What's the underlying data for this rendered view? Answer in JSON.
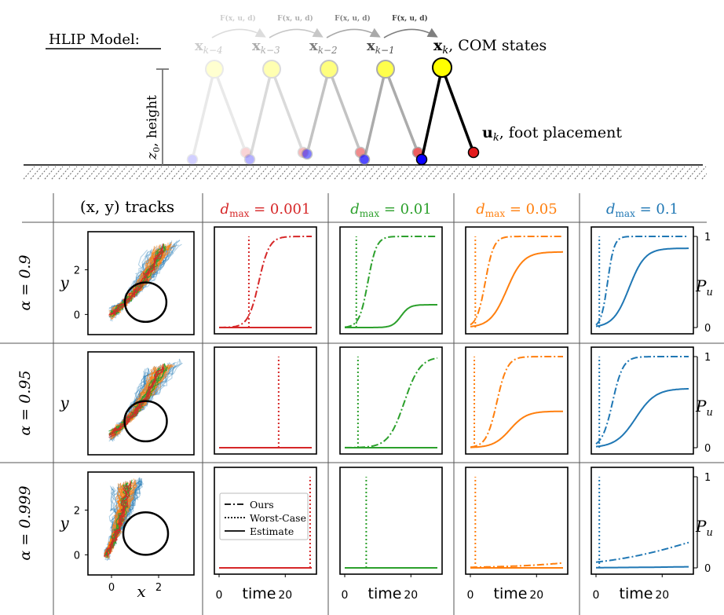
{
  "hlip": {
    "title": "HLIP Model:",
    "com_states_label": "x",
    "com_states_sub": "k",
    "com_states_text": ", COM states",
    "foot_label": "u",
    "foot_sub": "k",
    "foot_text": ", foot placement",
    "height_label": "z",
    "height_sub": "0",
    "height_text": ", height",
    "transition_label": "F(x, u, d)",
    "past_state_labels": [
      "x",
      "x",
      "x",
      "x"
    ],
    "past_state_subs": [
      "k−4",
      "k−3",
      "k−2",
      "k−1"
    ],
    "com_color": "#ffff00",
    "foot_color": "#e31a1c",
    "stance_color": "#0a00ff"
  },
  "grid": {
    "tracks_header": "(x, y) tracks",
    "col_headers": [
      {
        "label": "d",
        "sub": "max",
        "value": " = 0.001",
        "color": "#d62728"
      },
      {
        "label": "d",
        "sub": "max",
        "value": " = 0.01",
        "color": "#2ca02c"
      },
      {
        "label": "d",
        "sub": "max",
        "value": " = 0.05",
        "color": "#ff7f0e"
      },
      {
        "label": "d",
        "sub": "max",
        "value": " = 0.1",
        "color": "#1f77b4"
      }
    ],
    "row_headers": [
      "α = 0.9",
      "α = 0.95",
      "α = 0.999"
    ],
    "right_axis_label": "P",
    "right_axis_sub": "u",
    "right_ticks": [
      "0",
      "1"
    ],
    "x_axis_label": "time",
    "x_ticks": [
      "0",
      "20"
    ],
    "track_x_label": "x",
    "track_y_label": "y",
    "track_x_ticks": [
      "0",
      "2"
    ],
    "track_y_ticks": [
      "0",
      "2"
    ]
  },
  "legend": {
    "items": [
      {
        "label": "Ours",
        "style": "dashdot"
      },
      {
        "label": "Worst-Case",
        "style": "dotted"
      },
      {
        "label": "Estimate",
        "style": "solid"
      }
    ]
  },
  "chart_data": [
    {
      "type": "line",
      "xlabel": "time",
      "ylabel": "P_u",
      "ylim": [
        0,
        1
      ],
      "xlim": [
        0,
        28
      ],
      "rows": [
        "α = 0.9",
        "α = 0.95",
        "α = 0.999"
      ],
      "columns": [
        "d_max = 0.001",
        "d_max = 0.01",
        "d_max = 0.05",
        "d_max = 0.1"
      ],
      "panels": [
        {
          "row": 0,
          "col": 0,
          "worst_case_t": 9,
          "ours": {
            "center": 12,
            "width": 1.6,
            "max": 1.0
          },
          "estimate": {
            "center": 30,
            "width": 1.5,
            "max": 0.0
          }
        },
        {
          "row": 0,
          "col": 1,
          "worst_case_t": 3.5,
          "ours": {
            "center": 7,
            "width": 1.3,
            "max": 1.0
          },
          "estimate": {
            "center": 17,
            "width": 1.3,
            "max": 0.25
          }
        },
        {
          "row": 0,
          "col": 2,
          "worst_case_t": 1.5,
          "ours": {
            "center": 4.5,
            "width": 1.3,
            "max": 1.0
          },
          "estimate": {
            "center": 11,
            "width": 2.5,
            "max": 0.83
          }
        },
        {
          "row": 0,
          "col": 3,
          "worst_case_t": 1.0,
          "ours": {
            "center": 3.5,
            "width": 1.0,
            "max": 1.0
          },
          "estimate": {
            "center": 10,
            "width": 2.4,
            "max": 0.87
          }
        },
        {
          "row": 1,
          "col": 0,
          "worst_case_t": 18,
          "ours": {
            "center": 40,
            "width": 1.5,
            "max": 0.0
          },
          "estimate": {
            "center": 40,
            "width": 1.5,
            "max": 0.0
          }
        },
        {
          "row": 1,
          "col": 1,
          "worst_case_t": 4,
          "ours": {
            "center": 18,
            "width": 2.4,
            "max": 1.0
          },
          "estimate": {
            "center": 40,
            "width": 1.5,
            "max": 0.0
          }
        },
        {
          "row": 1,
          "col": 2,
          "worst_case_t": 1.2,
          "ours": {
            "center": 8,
            "width": 1.6,
            "max": 1.0
          },
          "estimate": {
            "center": 12,
            "width": 2.5,
            "max": 0.4
          }
        },
        {
          "row": 1,
          "col": 3,
          "worst_case_t": 1.0,
          "ours": {
            "center": 5,
            "width": 1.6,
            "max": 1.0
          },
          "estimate": {
            "center": 12,
            "width": 3.0,
            "max": 0.65
          }
        },
        {
          "row": 2,
          "col": 0,
          "worst_case_t": 27.5,
          "ours": {
            "center": 40,
            "width": 1.5,
            "max": 0.0
          },
          "estimate": {
            "center": 40,
            "width": 1.5,
            "max": 0.0
          }
        },
        {
          "row": 2,
          "col": 1,
          "worst_case_t": 6.5,
          "ours": {
            "center": 40,
            "width": 1.5,
            "max": 0.0
          },
          "estimate": {
            "center": 40,
            "width": 1.5,
            "max": 0.0
          }
        },
        {
          "row": 2,
          "col": 2,
          "worst_case_t": 1.5,
          "ours": {
            "center": 40,
            "width": 12,
            "max": 0.2
          },
          "estimate": {
            "center": 40,
            "width": 1.5,
            "max": 0.0
          }
        },
        {
          "row": 2,
          "col": 3,
          "worst_case_t": 1.0,
          "ours": {
            "center": 30,
            "width": 14,
            "max": 0.6
          },
          "estimate": {
            "center": 40,
            "width": 15,
            "max": 0.04
          }
        }
      ]
    }
  ]
}
